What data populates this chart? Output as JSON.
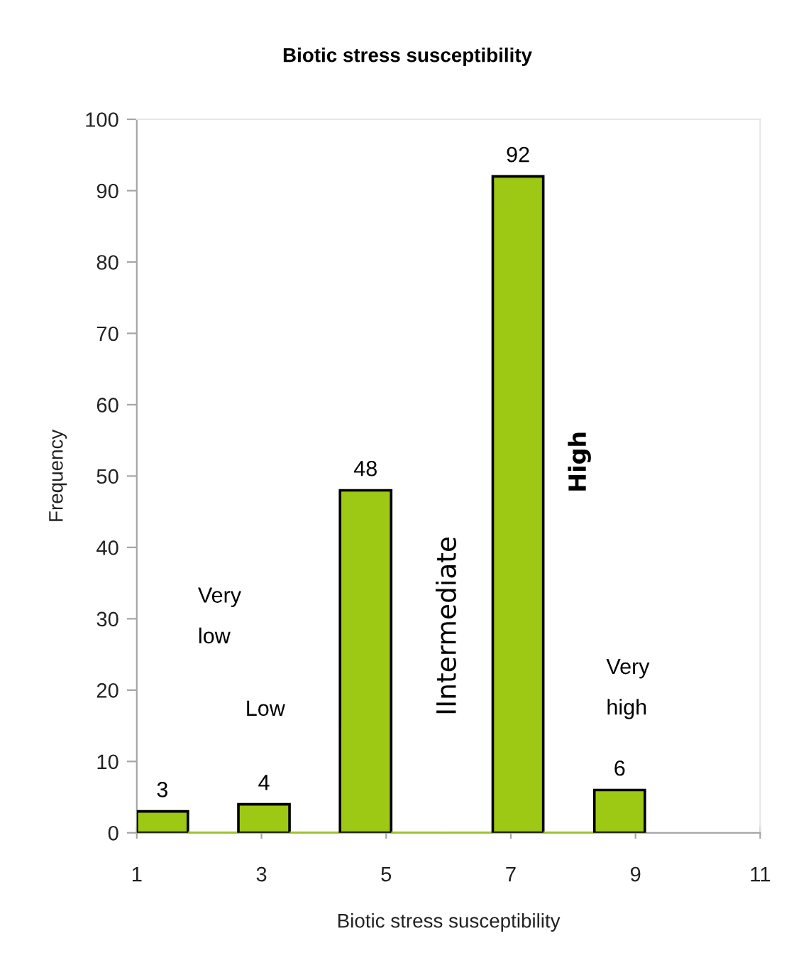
{
  "chart_data": {
    "type": "histogram",
    "title": "Biotic stress susceptibility",
    "xlabel": "Biotic stress susceptibility",
    "ylabel": "Frequency",
    "bins": [
      1,
      1.82,
      2.63,
      3.45,
      4.26,
      5.08,
      5.89,
      6.71,
      7.52,
      8.34,
      9.15
    ],
    "values": [
      3,
      0,
      4,
      0,
      48,
      0,
      0,
      92,
      0,
      6
    ],
    "value_labels": [
      "3",
      null,
      "4",
      null,
      "48",
      null,
      null,
      "92",
      null,
      "6"
    ],
    "color": "#9dc814",
    "xlim": [
      1,
      11
    ],
    "xticks": [
      1,
      3,
      5,
      7,
      9,
      11
    ],
    "ylim": [
      0,
      100
    ],
    "yticks": [
      0,
      10,
      20,
      30,
      40,
      50,
      60,
      70,
      80,
      90,
      100
    ],
    "annotations": [
      "Very\nlow",
      "Low",
      "IIntermediate",
      "High",
      "Very\nhigh"
    ]
  }
}
